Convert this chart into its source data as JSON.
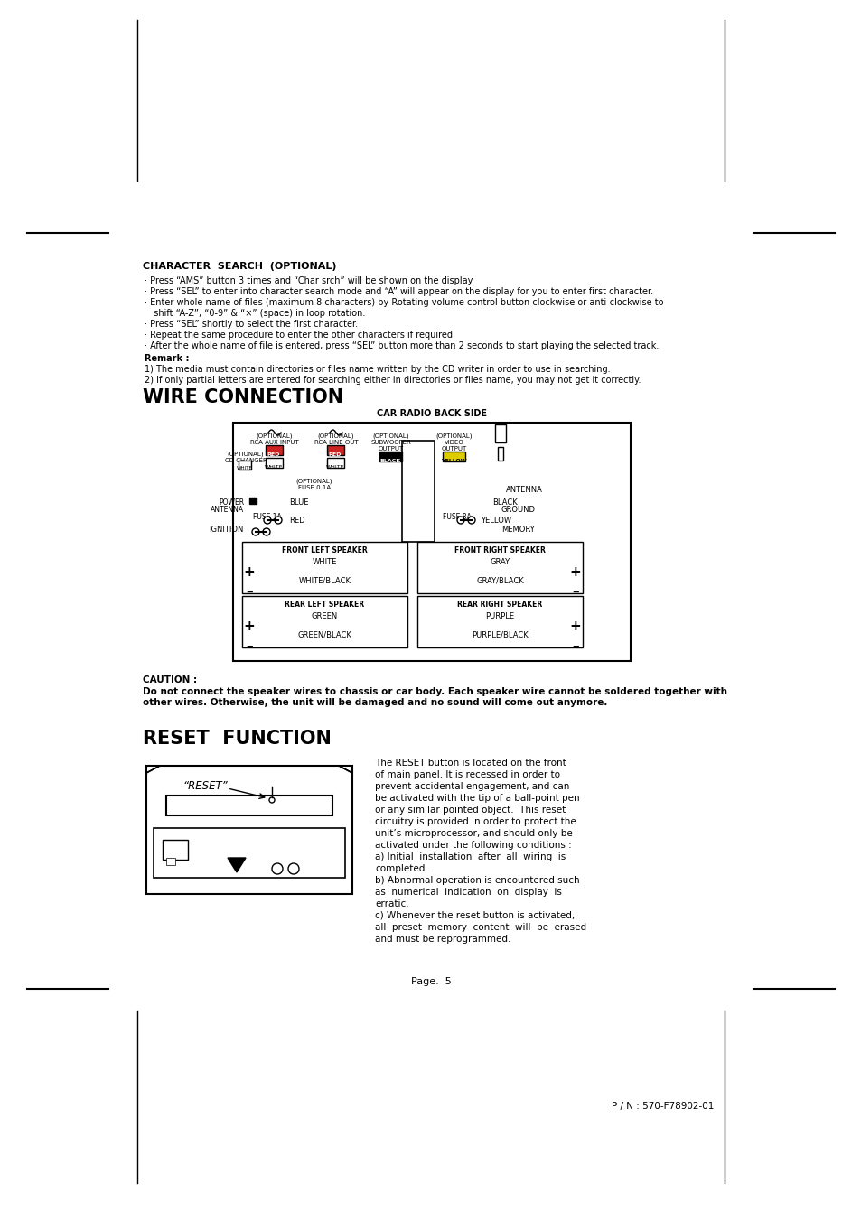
{
  "bg_color": "#ffffff",
  "char_search_title": "CHARACTER  SEARCH  (OPTIONAL)",
  "char_search_bullets": [
    "· Press “AMS” button 3 times and “Char srch” will be shown on the display.",
    "· Press “SEL” to enter into character search mode and “A” will appear on the display for you to enter first character.",
    "· Enter whole name of files (maximum 8 characters) by Rotating volume control button clockwise or anti-clockwise to",
    "  shift “A-Z”, “0-9” & “×” (space) in loop rotation.",
    "· Press “SEL” shortly to select the first character.",
    "· Repeat the same procedure to enter the other characters if required.",
    "· After the whole name of file is entered, press “SEL” button more than 2 seconds to start playing the selected track."
  ],
  "remark_title": "Remark :",
  "remark_lines": [
    "1) The media must contain directories or files name written by the CD writer in order to use in searching.",
    "2) If only partial letters are entered for searching either in directories or files name, you may not get it correctly."
  ],
  "wire_title": "WIRE CONNECTION",
  "car_radio_label": "CAR RADIO BACK SIDE",
  "reset_title": "RESET  FUNCTION",
  "reset_label": "“RESET”",
  "reset_text_lines": [
    "The RESET button is located on the front",
    "of main panel. It is recessed in order to",
    "prevent accidental engagement, and can",
    "be activated with the tip of a ball-point pen",
    "or any similar pointed object.  This reset",
    "circuitry is provided in order to protect the",
    "unit’s microprocessor, and should only be",
    "activated under the following conditions :",
    "a) Initial  installation  after  all  wiring  is",
    "completed.",
    "b) Abnormal operation is encountered such",
    "as  numerical  indication  on  display  is",
    "erratic.",
    "c) Whenever the reset button is activated,",
    "all  preset  memory  content  will  be  erased",
    "and must be reprogrammed."
  ],
  "caution_label": "CAUTION :",
  "caution_line1": "Do not connect the speaker wires to chassis or car body. Each speaker wire cannot be soldered together with",
  "caution_line2": "other wires. Otherwise, the unit will be damaged and no sound will come out anymore.",
  "page_number": "Page.  5",
  "part_number": "P / N : 570-F78902-01"
}
